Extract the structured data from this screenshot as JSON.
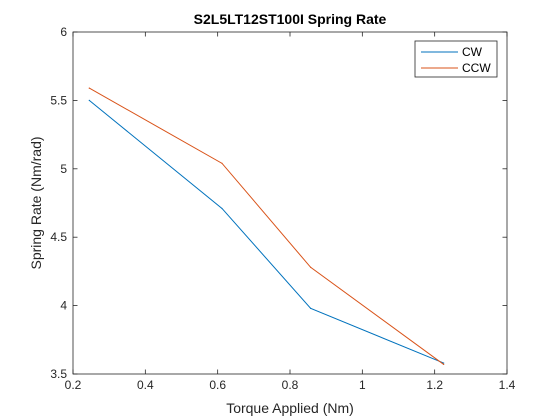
{
  "chart_data": {
    "type": "line",
    "title": "S2L5LT12ST100I Spring Rate",
    "xlabel": "Torque Applied (Nm)",
    "ylabel": "Spring Rate (Nm/rad)",
    "xlim": [
      0.2,
      1.4
    ],
    "ylim": [
      3.5,
      6
    ],
    "x_ticks": [
      0.2,
      0.4,
      0.6,
      0.8,
      1,
      1.2,
      1.4
    ],
    "y_ticks": [
      3.5,
      4,
      4.5,
      5,
      5.5,
      6
    ],
    "x_tick_labels": [
      "0.2",
      "0.4",
      "0.6",
      "0.8",
      "1",
      "1.2",
      "1.4"
    ],
    "y_tick_labels": [
      "3.5",
      "4",
      "4.5",
      "5",
      "5.5",
      "6"
    ],
    "grid": false,
    "legend": {
      "placement": "top-right"
    },
    "series": [
      {
        "name": "CW",
        "color": "#0072BD",
        "x": [
          0.245,
          0.612,
          0.857,
          1.225
        ],
        "y": [
          5.5,
          4.71,
          3.98,
          3.58
        ]
      },
      {
        "name": "CCW",
        "color": "#D95319",
        "x": [
          0.245,
          0.612,
          0.857,
          1.225
        ],
        "y": [
          5.59,
          5.04,
          4.28,
          3.57
        ]
      }
    ]
  }
}
